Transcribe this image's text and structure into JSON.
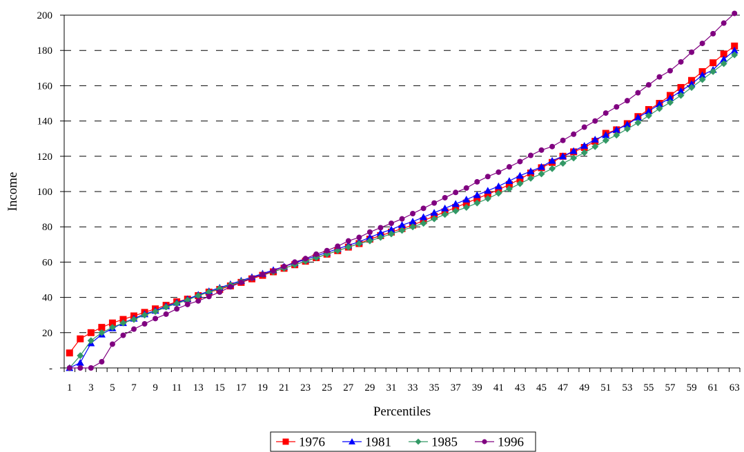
{
  "chart_data": {
    "type": "line",
    "title": "",
    "xlabel": "Percentiles",
    "ylabel": "Income",
    "xlim": [
      1,
      63
    ],
    "ylim": [
      0,
      200
    ],
    "y_ticks": [
      0,
      20,
      40,
      60,
      80,
      100,
      120,
      140,
      160,
      180,
      200
    ],
    "y_tick_labels": [
      "-",
      "20",
      "40",
      "60",
      "80",
      "100",
      "120",
      "140",
      "160",
      "180",
      "200"
    ],
    "x_ticks": [
      1,
      3,
      5,
      7,
      9,
      11,
      13,
      15,
      17,
      19,
      21,
      23,
      25,
      27,
      29,
      31,
      33,
      35,
      37,
      39,
      41,
      43,
      45,
      47,
      49,
      51,
      53,
      55,
      57,
      59,
      61,
      63
    ],
    "grid": "horizontal dashed",
    "legend_position": "bottom",
    "x": [
      1,
      2,
      3,
      4,
      5,
      6,
      7,
      8,
      9,
      10,
      11,
      12,
      13,
      14,
      15,
      16,
      17,
      18,
      19,
      20,
      21,
      22,
      23,
      24,
      25,
      26,
      27,
      28,
      29,
      30,
      31,
      32,
      33,
      34,
      35,
      36,
      37,
      38,
      39,
      40,
      41,
      42,
      43,
      44,
      45,
      46,
      47,
      48,
      49,
      50,
      51,
      52,
      53,
      54,
      55,
      56,
      57,
      58,
      59,
      60,
      61,
      62,
      63
    ],
    "series": [
      {
        "name": "1976",
        "color": "#ff0000",
        "marker": "square",
        "values": [
          8.5,
          16.5,
          20,
          23,
          25.5,
          27.5,
          29.5,
          31.5,
          33.5,
          35.5,
          37.5,
          39,
          41,
          43,
          44.5,
          46.5,
          48.5,
          50.5,
          52.5,
          54.5,
          56.5,
          58.5,
          60.5,
          62.5,
          64.5,
          66.5,
          68.5,
          70.5,
          73,
          75,
          77,
          79,
          81,
          83.5,
          86,
          88.5,
          91,
          93.5,
          96,
          98.5,
          101,
          104,
          107,
          110.5,
          113.5,
          116.5,
          120,
          122.5,
          125,
          128.5,
          133,
          135,
          138.5,
          142.5,
          146.5,
          150,
          154.5,
          159,
          163,
          168,
          173,
          178,
          182.5
        ]
      },
      {
        "name": "1981",
        "color": "#0000ff",
        "marker": "triangle",
        "values": [
          0,
          3,
          14,
          19,
          22.5,
          25.5,
          28,
          30.5,
          32.5,
          35,
          37,
          39,
          41.5,
          43.5,
          45.5,
          47.5,
          49.5,
          51.5,
          53.5,
          55.5,
          57.5,
          59.5,
          61.5,
          63.5,
          65.5,
          67.5,
          69.5,
          71.5,
          74,
          76.5,
          78.5,
          81,
          83,
          85.5,
          88,
          90.5,
          93,
          95.5,
          98,
          100.5,
          103,
          106,
          109,
          111.5,
          114,
          117.5,
          120,
          123,
          126,
          129.5,
          132,
          135,
          138,
          142,
          145.5,
          149.5,
          153,
          157,
          161,
          166,
          169,
          175,
          180
        ]
      },
      {
        "name": "1985",
        "color": "#339966",
        "marker": "diamond",
        "values": [
          0,
          7,
          15.5,
          20,
          23,
          25.5,
          27.5,
          30,
          32,
          34.5,
          36.5,
          38.5,
          41,
          43,
          45,
          47,
          49,
          51,
          53,
          54.5,
          56.5,
          58.5,
          60.5,
          62.5,
          64.5,
          66.5,
          68.5,
          70.5,
          72,
          74,
          76,
          78,
          80,
          82,
          84.5,
          87,
          89,
          91,
          93.5,
          96,
          99,
          101.5,
          104.5,
          107.5,
          110,
          113,
          116,
          119,
          122,
          125.5,
          129,
          132,
          135.5,
          139,
          143,
          147,
          150.5,
          154.5,
          159,
          163.5,
          168,
          172.5,
          177.5
        ]
      },
      {
        "name": "1996",
        "color": "#800080",
        "marker": "circle",
        "values": [
          0,
          0,
          0,
          3.5,
          13.5,
          18.5,
          22,
          25,
          28,
          30.5,
          33.5,
          36,
          38,
          40.5,
          43,
          46,
          48.5,
          51,
          53,
          55,
          57.5,
          60,
          62,
          64.5,
          66.5,
          69,
          72,
          74,
          77,
          79.5,
          82,
          84.5,
          87.5,
          90.5,
          93.5,
          96.5,
          99.5,
          102,
          105.5,
          108.5,
          111,
          114,
          117,
          120.5,
          123.5,
          125.5,
          129,
          132.5,
          136.5,
          140,
          144.5,
          148,
          151.5,
          156,
          160.5,
          165,
          168.5,
          173.5,
          179,
          184,
          189.5,
          195.5,
          201
        ]
      }
    ]
  }
}
